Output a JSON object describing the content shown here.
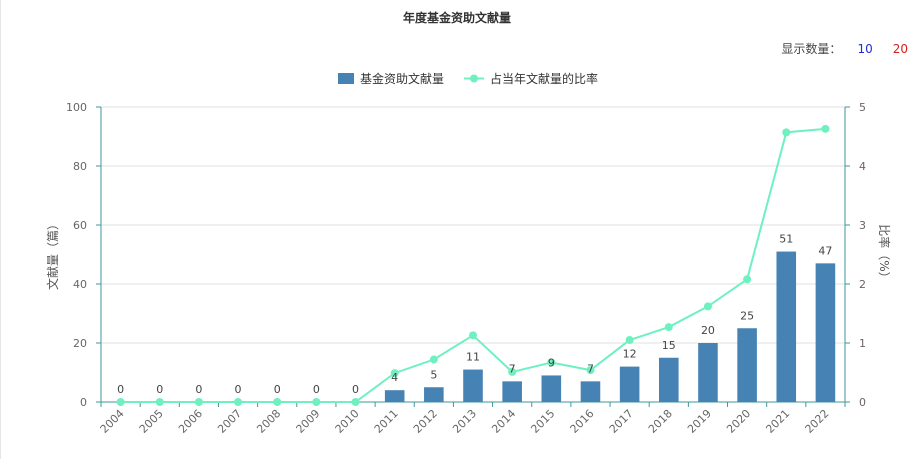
{
  "title": "年度基金资助文献量",
  "display_count": {
    "label": "显示数量：",
    "options": [
      "10",
      "20"
    ]
  },
  "colors": {
    "bar": "#4682b4",
    "line": "#6ef0c0",
    "option_10": "#1e2fd6",
    "option_20": "#d61e1e"
  },
  "chart_data": {
    "type": "bar",
    "title": "年度基金资助文献量",
    "categories": [
      "2004",
      "2005",
      "2006",
      "2007",
      "2008",
      "2009",
      "2010",
      "2011",
      "2012",
      "2013",
      "2014",
      "2015",
      "2016",
      "2017",
      "2018",
      "2019",
      "2020",
      "2021",
      "2022"
    ],
    "series": [
      {
        "name": "基金资助文献量",
        "type": "bar",
        "axis": "left",
        "values": [
          0,
          0,
          0,
          0,
          0,
          0,
          0,
          4,
          5,
          11,
          7,
          9,
          7,
          12,
          15,
          20,
          25,
          51,
          47
        ]
      },
      {
        "name": "占当年文献量的比率",
        "type": "line",
        "axis": "right",
        "values": [
          0,
          0,
          0,
          0,
          0,
          0,
          0,
          0.49,
          0.72,
          1.13,
          0.51,
          0.67,
          0.54,
          1.05,
          1.27,
          1.62,
          2.08,
          4.57,
          4.63
        ]
      }
    ],
    "ylabel": "文献量（篇）",
    "ylim": [
      0,
      100
    ],
    "yticks": [
      0,
      20,
      40,
      60,
      80,
      100
    ],
    "y2label": "比率（%）",
    "y2lim": [
      0,
      5
    ],
    "y2ticks": [
      0,
      1,
      2,
      3,
      4,
      5
    ],
    "legend": "top-center",
    "grid": true
  }
}
